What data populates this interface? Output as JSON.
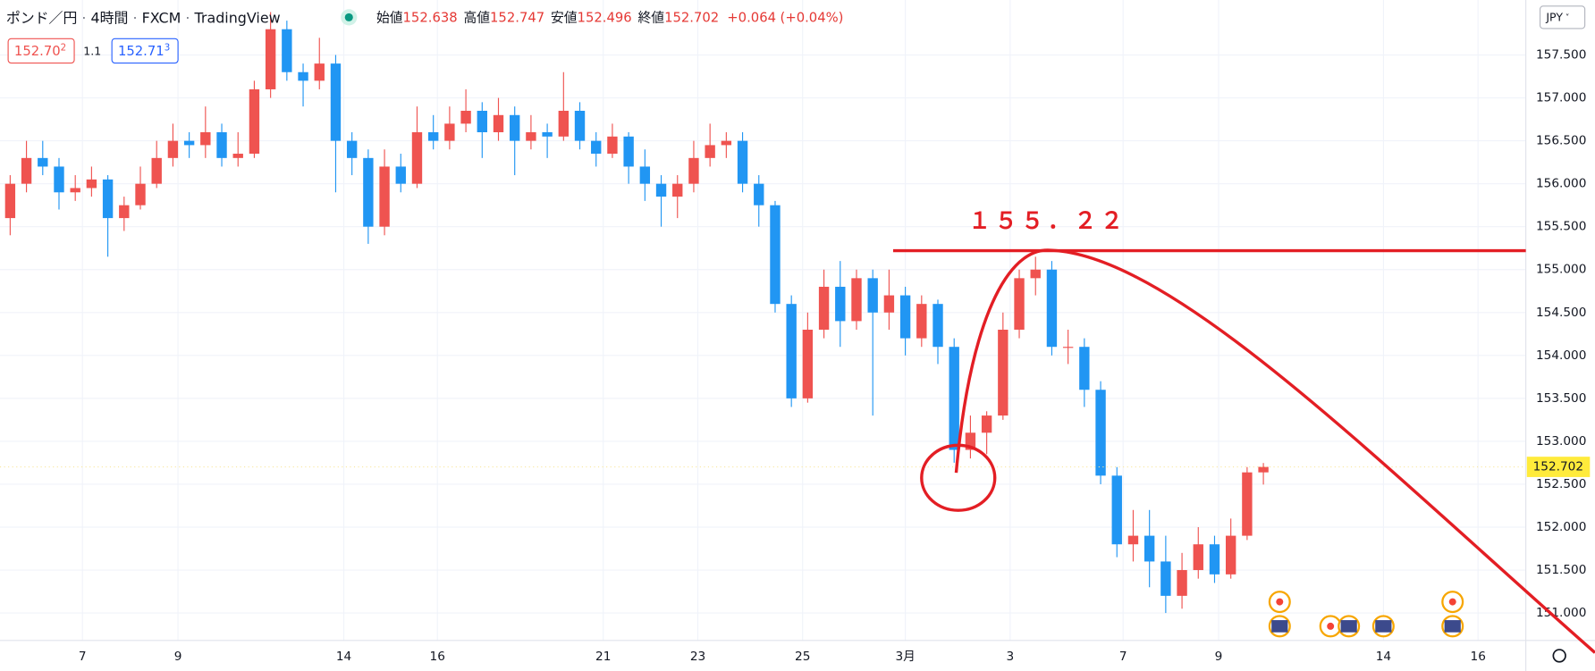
{
  "header": {
    "symbol": "ポンド／円",
    "interval": "4時間",
    "source": "FXCM",
    "platform": "TradingView",
    "ohlc_labels": [
      "始値",
      "高値",
      "安値",
      "終値"
    ],
    "change": "+0.064",
    "change_pct": "(+0.04%)",
    "sell_main": "152.70",
    "sell_small": "2",
    "spread": "1.1",
    "buy_main": "152.71",
    "buy_small": "3",
    "currency": "JPY"
  },
  "chart_data": {
    "type": "candlestick",
    "open": [
      155.6,
      156.0,
      156.3,
      156.2,
      155.9,
      155.95,
      156.05,
      155.6,
      155.75,
      156.0,
      156.3,
      156.5,
      156.45,
      156.6,
      156.3,
      156.35,
      157.1,
      157.8,
      157.3,
      157.2,
      157.4,
      156.5,
      156.3,
      155.5,
      156.2,
      156.0,
      156.6,
      156.5,
      156.7,
      156.85,
      156.6,
      156.8,
      156.5,
      156.6,
      156.55,
      156.85,
      156.5,
      156.35,
      156.55,
      156.2,
      156.0,
      155.85,
      156.0,
      156.3,
      156.45,
      156.5,
      156.0,
      155.75,
      154.6,
      153.5,
      154.3,
      154.8,
      154.4,
      154.9,
      154.5,
      154.7,
      154.2,
      154.6,
      154.1,
      152.9,
      153.1,
      153.3,
      154.3,
      154.9,
      155.0,
      154.1,
      154.1,
      153.6,
      152.6,
      151.8,
      151.9,
      151.6,
      151.2,
      151.5,
      151.8,
      151.45,
      151.9,
      152.638
    ],
    "high": [
      156.1,
      156.5,
      156.5,
      156.3,
      156.1,
      156.2,
      156.1,
      155.85,
      156.2,
      156.5,
      156.7,
      156.6,
      156.9,
      156.7,
      156.6,
      157.2,
      158.0,
      157.9,
      157.4,
      157.7,
      157.5,
      156.6,
      156.4,
      156.4,
      156.35,
      156.9,
      156.8,
      156.9,
      157.1,
      156.95,
      157.0,
      156.9,
      156.8,
      156.7,
      157.3,
      156.95,
      156.6,
      156.7,
      156.6,
      156.4,
      156.1,
      156.1,
      156.5,
      156.7,
      156.6,
      156.6,
      156.1,
      155.8,
      154.7,
      154.5,
      155.0,
      155.1,
      155.0,
      155.0,
      155.0,
      154.8,
      154.7,
      154.65,
      154.2,
      153.3,
      153.35,
      154.5,
      155.0,
      155.15,
      155.1,
      154.3,
      154.2,
      153.7,
      152.7,
      152.2,
      152.2,
      151.9,
      151.7,
      152.0,
      151.9,
      152.1,
      152.7,
      152.747
    ],
    "low": [
      155.4,
      155.9,
      156.1,
      155.7,
      155.8,
      155.85,
      155.15,
      155.45,
      155.7,
      155.95,
      156.2,
      156.3,
      156.3,
      156.2,
      156.2,
      156.3,
      157.0,
      157.2,
      156.9,
      157.1,
      155.9,
      156.1,
      155.3,
      155.4,
      155.9,
      155.95,
      156.4,
      156.4,
      156.6,
      156.3,
      156.5,
      156.1,
      156.4,
      156.3,
      156.5,
      156.4,
      156.2,
      156.3,
      156.0,
      155.8,
      155.5,
      155.6,
      155.9,
      156.2,
      156.3,
      155.9,
      155.5,
      154.5,
      153.4,
      153.45,
      154.2,
      154.1,
      154.3,
      153.3,
      154.3,
      154.0,
      154.1,
      153.9,
      152.75,
      152.8,
      152.85,
      153.25,
      154.2,
      154.7,
      154.0,
      153.9,
      153.4,
      152.5,
      151.65,
      151.6,
      151.3,
      151.0,
      151.05,
      151.4,
      151.35,
      151.4,
      151.85,
      152.496
    ],
    "close": [
      156.0,
      156.3,
      156.2,
      155.9,
      155.95,
      156.05,
      155.6,
      155.75,
      156.0,
      156.3,
      156.5,
      156.45,
      156.6,
      156.3,
      156.35,
      157.1,
      157.8,
      157.3,
      157.2,
      157.4,
      156.5,
      156.3,
      155.5,
      156.2,
      156.0,
      156.6,
      156.5,
      156.7,
      156.85,
      156.6,
      156.8,
      156.5,
      156.6,
      156.55,
      156.85,
      156.5,
      156.35,
      156.55,
      156.2,
      156.0,
      155.85,
      156.0,
      156.3,
      156.45,
      156.5,
      156.0,
      155.75,
      154.6,
      153.5,
      154.3,
      154.8,
      154.4,
      154.9,
      154.5,
      154.7,
      154.2,
      154.6,
      154.1,
      152.9,
      153.1,
      153.3,
      154.3,
      154.9,
      155.0,
      154.1,
      154.1,
      153.6,
      152.6,
      151.8,
      151.9,
      151.6,
      151.2,
      151.5,
      151.8,
      151.45,
      151.9,
      152.638,
      152.702
    ],
    "up_color": "#ef5350",
    "down_color": "#2196f3",
    "xlim": [
      -0.625,
      93.125
    ],
    "xticks": [
      {
        "value": 4.44,
        "label": "7"
      },
      {
        "value": 10.31,
        "label": "9"
      },
      {
        "value": 20.5,
        "label": "14"
      },
      {
        "value": 26.25,
        "label": "16"
      },
      {
        "value": 36.44,
        "label": "21"
      },
      {
        "value": 42.25,
        "label": "23"
      },
      {
        "value": 48.69,
        "label": "25"
      },
      {
        "value": 55,
        "label": "3月"
      },
      {
        "value": 61.44,
        "label": "3"
      },
      {
        "value": 68.38,
        "label": "7"
      },
      {
        "value": 74.25,
        "label": "9"
      },
      {
        "value": 84.38,
        "label": "14"
      },
      {
        "value": 90.19,
        "label": "16"
      }
    ],
    "ylim": [
      150.68,
      158.14
    ],
    "yticks": [
      {
        "value": 151,
        "label": "151.000"
      },
      {
        "value": 151.5,
        "label": "151.500"
      },
      {
        "value": 152,
        "label": "152.000"
      },
      {
        "value": 152.5,
        "label": "152.500"
      },
      {
        "value": 153,
        "label": "153.000"
      },
      {
        "value": 153.5,
        "label": "153.500"
      },
      {
        "value": 154,
        "label": "154.000"
      },
      {
        "value": 154.5,
        "label": "154.500"
      },
      {
        "value": 155,
        "label": "155.000"
      },
      {
        "value": 155.5,
        "label": "155.500"
      },
      {
        "value": 156,
        "label": "156.000"
      },
      {
        "value": 156.5,
        "label": "156.500"
      },
      {
        "value": 157,
        "label": "157.000"
      },
      {
        "value": 157.5,
        "label": "157.500"
      }
    ],
    "grid": true,
    "annotation": {
      "text": "１５５．２２",
      "value": 155.22
    }
  }
}
